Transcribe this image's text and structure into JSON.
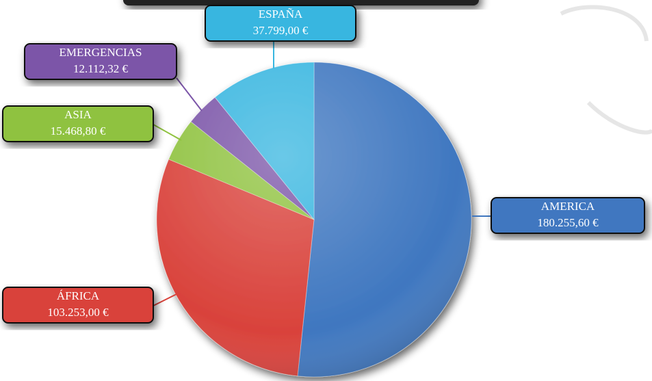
{
  "chart_data": {
    "type": "pie",
    "categories": [
      "AMERICA",
      "ÁFRICA",
      "ASIA",
      "EMERGENCIAS",
      "ESPAÑA"
    ],
    "values": [
      180255.6,
      103253.0,
      15468.8,
      12112.32,
      37799.0
    ],
    "value_labels": [
      "180.255,60 €",
      "103.253,00 €",
      "15.468,80 €",
      "12.112,32 €",
      "37.799,00 €"
    ],
    "colors": [
      "#3f77c0",
      "#d9423b",
      "#8fc23f",
      "#7b55a8",
      "#38b6e0"
    ]
  }
}
